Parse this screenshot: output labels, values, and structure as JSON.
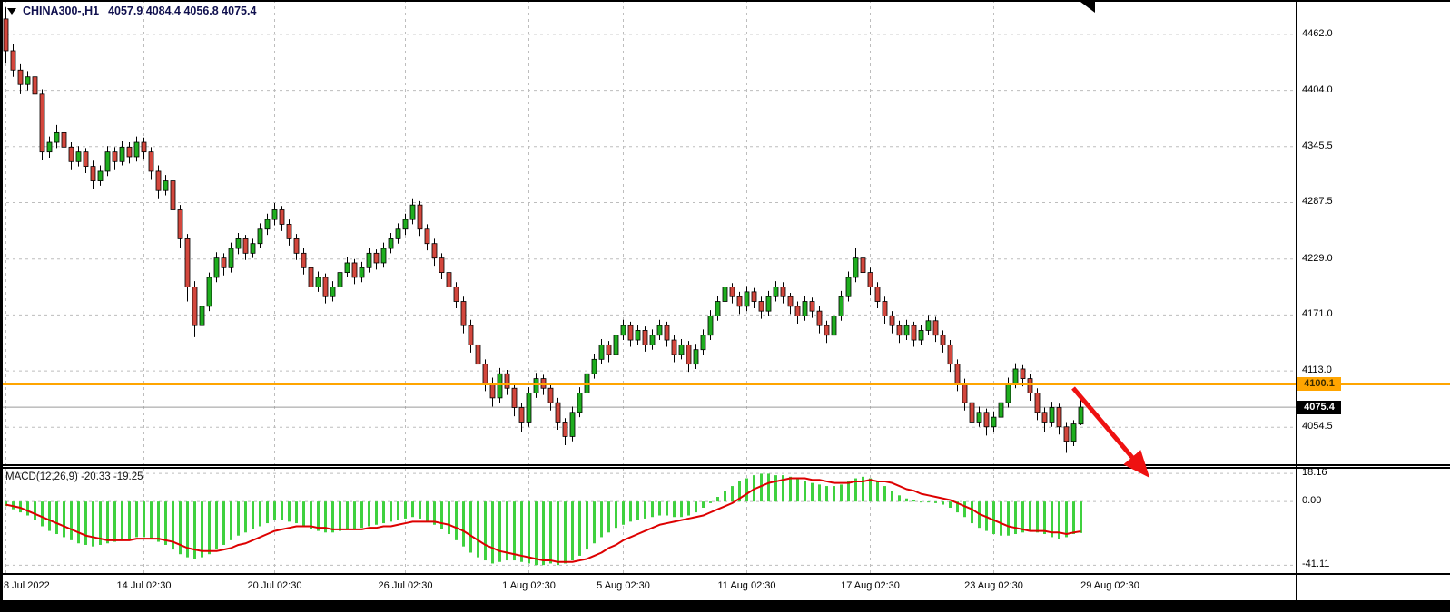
{
  "header": {
    "symbol": "CHINA300-,H1",
    "ohlc": "4057.9 4084.4 4056.8 4075.4"
  },
  "macd_panel": {
    "label": "MACD(12,26,9) -20.33 -19.25",
    "axis_labels": [
      "18.16",
      "0.00",
      "-41.11"
    ]
  },
  "price_axis": {
    "labels": [
      "4462.0",
      "4404.0",
      "4345.5",
      "4287.5",
      "4229.0",
      "4171.0",
      "4113.0",
      "4054.5"
    ]
  },
  "x_axis": {
    "labels": [
      {
        "text": "8 Jul 2022",
        "index": 0
      },
      {
        "text": "14 Jul 02:30",
        "index": 19
      },
      {
        "text": "20 Jul 02:30",
        "index": 37
      },
      {
        "text": "26 Jul 02:30",
        "index": 55
      },
      {
        "text": "1 Aug 02:30",
        "index": 72
      },
      {
        "text": "5 Aug 02:30",
        "index": 85
      },
      {
        "text": "11 Aug 02:30",
        "index": 102
      },
      {
        "text": "17 Aug 02:30",
        "index": 119
      },
      {
        "text": "23 Aug 02:30",
        "index": 136
      },
      {
        "text": "29 Aug 02:30",
        "index": 152
      }
    ]
  },
  "annotations": {
    "hline": {
      "label": "4100.1",
      "price": 4100.1,
      "color": "#FFA500"
    },
    "current_price": {
      "label": "4075.4",
      "price": 4075.4
    },
    "arrow": {
      "direction": "down-right",
      "color": "#EE1111"
    }
  },
  "colors": {
    "up": "#1fae1f",
    "down": "#d3473d",
    "candle_border": "#000000",
    "macd_hist": "#3fd13f",
    "macd_signal": "#dd0000",
    "grid": "#bdbdbd",
    "hline": "#FFA500",
    "arrow": "#EE1111",
    "current_badge_bg": "#000000"
  },
  "chart_data": [
    {
      "type": "candlestick",
      "title": "CHINA300- H1 candlestick chart",
      "ylim": [
        4020,
        4492
      ],
      "yticks": [
        4462.0,
        4404.0,
        4345.5,
        4287.5,
        4229.0,
        4171.0,
        4113.0,
        4054.5
      ],
      "x_tick_labels": [
        "8 Jul 2022",
        "14 Jul 02:30",
        "20 Jul 02:30",
        "26 Jul 02:30",
        "1 Aug 02:30",
        "5 Aug 02:30",
        "11 Aug 02:30",
        "17 Aug 02:30",
        "23 Aug 02:30",
        "29 Aug 02:30"
      ],
      "candles": [
        [
          4478,
          4490,
          4432,
          4445
        ],
        [
          4445,
          4452,
          4418,
          4425
        ],
        [
          4425,
          4431,
          4400,
          4410
        ],
        [
          4410,
          4424,
          4404,
          4418
        ],
        [
          4418,
          4430,
          4396,
          4400
        ],
        [
          4400,
          4405,
          4332,
          4340
        ],
        [
          4340,
          4356,
          4334,
          4350
        ],
        [
          4350,
          4368,
          4344,
          4360
        ],
        [
          4360,
          4366,
          4338,
          4345
        ],
        [
          4345,
          4350,
          4322,
          4330
        ],
        [
          4330,
          4346,
          4325,
          4340
        ],
        [
          4340,
          4344,
          4318,
          4325
        ],
        [
          4325,
          4331,
          4302,
          4310
        ],
        [
          4310,
          4326,
          4305,
          4320
        ],
        [
          4320,
          4346,
          4315,
          4340
        ],
        [
          4340,
          4345,
          4322,
          4330
        ],
        [
          4330,
          4351,
          4326,
          4345
        ],
        [
          4345,
          4350,
          4328,
          4335
        ],
        [
          4335,
          4356,
          4330,
          4350
        ],
        [
          4350,
          4355,
          4333,
          4340
        ],
        [
          4340,
          4345,
          4312,
          4320
        ],
        [
          4320,
          4326,
          4292,
          4300
        ],
        [
          4300,
          4316,
          4295,
          4310
        ],
        [
          4310,
          4314,
          4272,
          4280
        ],
        [
          4280,
          4285,
          4240,
          4250
        ],
        [
          4250,
          4255,
          4185,
          4200
        ],
        [
          4200,
          4206,
          4148,
          4160
        ],
        [
          4160,
          4186,
          4155,
          4180
        ],
        [
          4180,
          4215,
          4175,
          4210
        ],
        [
          4210,
          4236,
          4205,
          4230
        ],
        [
          4230,
          4235,
          4212,
          4220
        ],
        [
          4220,
          4246,
          4215,
          4240
        ],
        [
          4240,
          4256,
          4234,
          4250
        ],
        [
          4250,
          4254,
          4228,
          4235
        ],
        [
          4235,
          4250,
          4230,
          4245
        ],
        [
          4245,
          4266,
          4240,
          4260
        ],
        [
          4260,
          4276,
          4254,
          4270
        ],
        [
          4270,
          4287,
          4264,
          4280
        ],
        [
          4280,
          4284,
          4258,
          4265
        ],
        [
          4265,
          4270,
          4243,
          4250
        ],
        [
          4250,
          4255,
          4228,
          4235
        ],
        [
          4235,
          4240,
          4213,
          4220
        ],
        [
          4220,
          4225,
          4192,
          4200
        ],
        [
          4200,
          4216,
          4195,
          4210
        ],
        [
          4210,
          4214,
          4183,
          4190
        ],
        [
          4190,
          4206,
          4185,
          4200
        ],
        [
          4200,
          4221,
          4195,
          4215
        ],
        [
          4215,
          4231,
          4210,
          4225
        ],
        [
          4225,
          4229,
          4203,
          4210
        ],
        [
          4210,
          4226,
          4205,
          4220
        ],
        [
          4220,
          4241,
          4215,
          4235
        ],
        [
          4235,
          4239,
          4218,
          4225
        ],
        [
          4225,
          4246,
          4220,
          4240
        ],
        [
          4240,
          4256,
          4235,
          4250
        ],
        [
          4250,
          4266,
          4245,
          4260
        ],
        [
          4260,
          4276,
          4254,
          4270
        ],
        [
          4270,
          4292,
          4265,
          4285
        ],
        [
          4285,
          4289,
          4253,
          4260
        ],
        [
          4260,
          4265,
          4238,
          4245
        ],
        [
          4245,
          4250,
          4222,
          4230
        ],
        [
          4230,
          4235,
          4208,
          4215
        ],
        [
          4215,
          4220,
          4192,
          4200
        ],
        [
          4200,
          4205,
          4178,
          4185
        ],
        [
          4185,
          4190,
          4152,
          4160
        ],
        [
          4160,
          4166,
          4132,
          4140
        ],
        [
          4140,
          4145,
          4112,
          4120
        ],
        [
          4120,
          4125,
          4092,
          4100
        ],
        [
          4100,
          4106,
          4076,
          4085
        ],
        [
          4085,
          4116,
          4080,
          4110
        ],
        [
          4110,
          4114,
          4088,
          4095
        ],
        [
          4095,
          4100,
          4066,
          4075
        ],
        [
          4075,
          4080,
          4050,
          4060
        ],
        [
          4060,
          4096,
          4055,
          4090
        ],
        [
          4090,
          4111,
          4085,
          4105
        ],
        [
          4105,
          4109,
          4088,
          4095
        ],
        [
          4095,
          4100,
          4072,
          4080
        ],
        [
          4080,
          4085,
          4052,
          4060
        ],
        [
          4060,
          4064,
          4036,
          4045
        ],
        [
          4045,
          4076,
          4040,
          4070
        ],
        [
          4070,
          4096,
          4065,
          4090
        ],
        [
          4090,
          4116,
          4085,
          4110
        ],
        [
          4110,
          4131,
          4105,
          4125
        ],
        [
          4125,
          4146,
          4120,
          4140
        ],
        [
          4140,
          4144,
          4122,
          4130
        ],
        [
          4130,
          4156,
          4125,
          4150
        ],
        [
          4150,
          4166,
          4145,
          4160
        ],
        [
          4160,
          4164,
          4138,
          4145
        ],
        [
          4145,
          4161,
          4140,
          4155
        ],
        [
          4155,
          4159,
          4133,
          4140
        ],
        [
          4140,
          4156,
          4135,
          4150
        ],
        [
          4150,
          4166,
          4145,
          4160
        ],
        [
          4160,
          4164,
          4138,
          4145
        ],
        [
          4145,
          4150,
          4122,
          4130
        ],
        [
          4130,
          4146,
          4125,
          4140
        ],
        [
          4140,
          4144,
          4112,
          4120
        ],
        [
          4120,
          4141,
          4115,
          4135
        ],
        [
          4135,
          4156,
          4130,
          4150
        ],
        [
          4150,
          4176,
          4145,
          4170
        ],
        [
          4170,
          4191,
          4165,
          4185
        ],
        [
          4185,
          4206,
          4180,
          4200
        ],
        [
          4200,
          4204,
          4183,
          4190
        ],
        [
          4190,
          4195,
          4172,
          4180
        ],
        [
          4180,
          4201,
          4175,
          4195
        ],
        [
          4195,
          4199,
          4178,
          4185
        ],
        [
          4185,
          4190,
          4167,
          4175
        ],
        [
          4175,
          4196,
          4170,
          4190
        ],
        [
          4190,
          4206,
          4185,
          4200
        ],
        [
          4200,
          4205,
          4183,
          4190
        ],
        [
          4190,
          4194,
          4172,
          4180
        ],
        [
          4180,
          4185,
          4162,
          4170
        ],
        [
          4170,
          4191,
          4165,
          4185
        ],
        [
          4185,
          4189,
          4168,
          4175
        ],
        [
          4175,
          4180,
          4152,
          4160
        ],
        [
          4160,
          4165,
          4142,
          4150
        ],
        [
          4150,
          4176,
          4145,
          4170
        ],
        [
          4170,
          4196,
          4165,
          4190
        ],
        [
          4190,
          4216,
          4185,
          4210
        ],
        [
          4210,
          4240,
          4205,
          4230
        ],
        [
          4230,
          4234,
          4208,
          4215
        ],
        [
          4215,
          4220,
          4192,
          4200
        ],
        [
          4200,
          4205,
          4178,
          4185
        ],
        [
          4185,
          4190,
          4162,
          4170
        ],
        [
          4170,
          4175,
          4152,
          4160
        ],
        [
          4160,
          4165,
          4142,
          4150
        ],
        [
          4150,
          4166,
          4145,
          4160
        ],
        [
          4160,
          4164,
          4138,
          4145
        ],
        [
          4145,
          4161,
          4140,
          4155
        ],
        [
          4155,
          4171,
          4150,
          4165
        ],
        [
          4165,
          4169,
          4143,
          4150
        ],
        [
          4150,
          4155,
          4132,
          4140
        ],
        [
          4140,
          4145,
          4112,
          4120
        ],
        [
          4120,
          4125,
          4092,
          4100
        ],
        [
          4100,
          4105,
          4072,
          4080
        ],
        [
          4080,
          4085,
          4050,
          4060
        ],
        [
          4060,
          4076,
          4055,
          4070
        ],
        [
          4070,
          4074,
          4046,
          4055
        ],
        [
          4055,
          4071,
          4050,
          4065
        ],
        [
          4065,
          4086,
          4060,
          4080
        ],
        [
          4080,
          4106,
          4075,
          4100
        ],
        [
          4100,
          4121,
          4095,
          4115
        ],
        [
          4115,
          4119,
          4097,
          4105
        ],
        [
          4105,
          4110,
          4082,
          4090
        ],
        [
          4090,
          4095,
          4062,
          4070
        ],
        [
          4070,
          4075,
          4050,
          4060
        ],
        [
          4060,
          4081,
          4055,
          4075
        ],
        [
          4075,
          4079,
          4047,
          4055
        ],
        [
          4055,
          4060,
          4028,
          4040
        ],
        [
          4040,
          4062,
          4035,
          4058
        ],
        [
          4057.9,
          4084.4,
          4056.8,
          4075.4
        ]
      ]
    },
    {
      "type": "bar",
      "name": "MACD(12,26,9)",
      "ylim": [
        -45,
        20
      ],
      "yticks": [
        18.16,
        0.0,
        -41.11
      ],
      "values": [
        -3,
        -5,
        -7,
        -9,
        -12,
        -16,
        -19,
        -21,
        -23,
        -25,
        -27,
        -28,
        -29,
        -28,
        -27,
        -26,
        -25,
        -24,
        -23,
        -23,
        -24,
        -26,
        -28,
        -31,
        -34,
        -36,
        -37,
        -36,
        -34,
        -31,
        -28,
        -25,
        -22,
        -20,
        -18,
        -16,
        -14,
        -12,
        -12,
        -13,
        -14,
        -16,
        -18,
        -19,
        -20,
        -20,
        -19,
        -18,
        -18,
        -17,
        -16,
        -15,
        -14,
        -13,
        -12,
        -11,
        -10,
        -11,
        -13,
        -15,
        -18,
        -21,
        -25,
        -29,
        -33,
        -36,
        -38,
        -40,
        -39,
        -38,
        -38,
        -39,
        -40,
        -41,
        -41,
        -40,
        -41,
        -40,
        -38,
        -35,
        -31,
        -27,
        -23,
        -20,
        -17,
        -15,
        -13,
        -12,
        -11,
        -10,
        -9,
        -9,
        -10,
        -10,
        -9,
        -7,
        -4,
        -1,
        3,
        7,
        10,
        13,
        15,
        17,
        18,
        18,
        17,
        17,
        16,
        15,
        13,
        12,
        11,
        10,
        10,
        11,
        13,
        15,
        16,
        15,
        13,
        10,
        7,
        4,
        2,
        1,
        0,
        0,
        -1,
        -2,
        -4,
        -7,
        -10,
        -14,
        -17,
        -19,
        -21,
        -22,
        -22,
        -21,
        -20,
        -19,
        -20,
        -21,
        -23,
        -24,
        -23,
        -21,
        -20.33
      ],
      "series": [
        {
          "name": "signal",
          "values": [
            -2,
            -3,
            -4,
            -6,
            -8,
            -10,
            -12,
            -14,
            -16,
            -18,
            -20,
            -22,
            -23,
            -24,
            -25,
            -25,
            -25,
            -25,
            -24,
            -24,
            -24,
            -24,
            -25,
            -26,
            -28,
            -30,
            -31,
            -32,
            -32,
            -32,
            -31,
            -30,
            -28,
            -27,
            -25,
            -23,
            -21,
            -19,
            -18,
            -17,
            -16,
            -16,
            -16,
            -17,
            -17,
            -18,
            -18,
            -18,
            -18,
            -18,
            -17,
            -17,
            -16,
            -16,
            -15,
            -14,
            -13,
            -13,
            -13,
            -13,
            -14,
            -15,
            -17,
            -19,
            -22,
            -25,
            -28,
            -30,
            -32,
            -33,
            -34,
            -35,
            -36,
            -37,
            -38,
            -38,
            -39,
            -39,
            -39,
            -38,
            -37,
            -35,
            -33,
            -30,
            -28,
            -25,
            -23,
            -21,
            -19,
            -17,
            -15,
            -14,
            -13,
            -12,
            -11,
            -10,
            -9,
            -7,
            -5,
            -3,
            -1,
            2,
            5,
            8,
            10,
            12,
            13,
            14,
            15,
            15,
            15,
            14,
            14,
            13,
            12,
            12,
            12,
            13,
            13,
            14,
            13,
            13,
            12,
            10,
            8,
            7,
            5,
            4,
            3,
            2,
            1,
            -1,
            -3,
            -5,
            -8,
            -10,
            -12,
            -14,
            -16,
            -17,
            -18,
            -19,
            -19,
            -19,
            -20,
            -20,
            -21,
            -20,
            -19.25
          ]
        }
      ]
    }
  ]
}
